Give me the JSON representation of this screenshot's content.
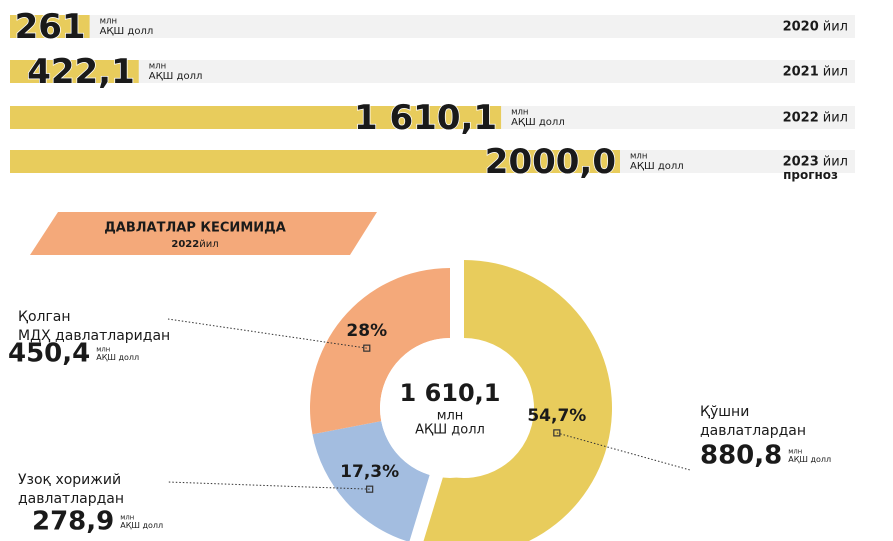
{
  "chart_data": [
    {
      "type": "hbar",
      "categories": [
        "2020",
        "2021",
        "2022",
        "2023"
      ],
      "category_suffix": "йил",
      "values": [
        261,
        422.1,
        1610.1,
        2000.0
      ],
      "value_labels": [
        "261",
        "422,1",
        "1 610,1",
        "2000,0"
      ],
      "unit": [
        "млн",
        "АҚШ долл"
      ],
      "annotation": "прогноз",
      "color": "#e8cc5c",
      "track_color": "#f2f2f2",
      "label_color": "#1f9bd7"
    },
    {
      "type": "donut",
      "title": "ДАВЛАТЛАР КЕСИМИДА",
      "subtitle": [
        "2022",
        "йил"
      ],
      "center": [
        "1 610,1",
        "млн",
        "АҚШ долл"
      ],
      "unit": [
        "млн",
        "АҚШ долл"
      ],
      "categories": [
        [
          "Қўшни",
          "давлатлардан"
        ],
        [
          "Узоқ хорижий",
          "давлатлардан"
        ],
        [
          "Қолган",
          "МДҲ давлатларидан"
        ]
      ],
      "values": [
        54.7,
        17.3,
        28
      ],
      "value_labels": [
        "54,7%",
        "17,3%",
        "28%"
      ],
      "amounts": [
        880.8,
        278.9,
        450.4
      ],
      "amount_labels": [
        "880,8",
        "278,9",
        "450,4"
      ],
      "colors": [
        "#e8cc5c",
        "#a3bde0",
        "#f4a97a"
      ]
    }
  ]
}
